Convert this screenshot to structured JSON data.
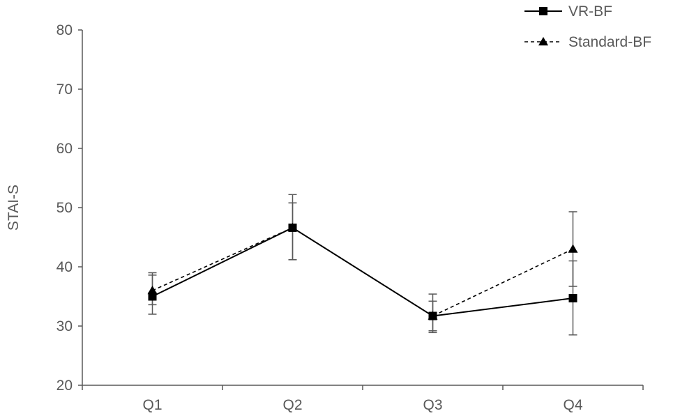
{
  "chart_data": {
    "type": "line",
    "title": "",
    "xlabel": "",
    "ylabel": "STAI-S",
    "categories": [
      "Q1",
      "Q2",
      "Q3",
      "Q4"
    ],
    "ylim": [
      20,
      80
    ],
    "yticks": [
      20,
      30,
      40,
      50,
      60,
      70,
      80
    ],
    "grid": false,
    "legend_position": "top-right",
    "series": [
      {
        "name": "VR-BF",
        "values": [
          35.0,
          46.6,
          31.7,
          34.7
        ],
        "error_upper": [
          39.0,
          52.2,
          35.4,
          41.0
        ],
        "error_lower": [
          32.0,
          41.2,
          28.9,
          28.5
        ],
        "marker": "square",
        "line_style": "solid",
        "color": "#000000"
      },
      {
        "name": "Standard-BF",
        "values": [
          36.0,
          46.6,
          31.7,
          43.0
        ],
        "error_upper": [
          38.6,
          50.8,
          34.2,
          49.3
        ],
        "error_lower": [
          33.6,
          41.2,
          29.2,
          36.7
        ],
        "marker": "triangle",
        "line_style": "dashed",
        "color": "#000000"
      }
    ],
    "colors": {
      "axis": "#595959",
      "error_bar": "#595959",
      "text": "#595959"
    }
  }
}
